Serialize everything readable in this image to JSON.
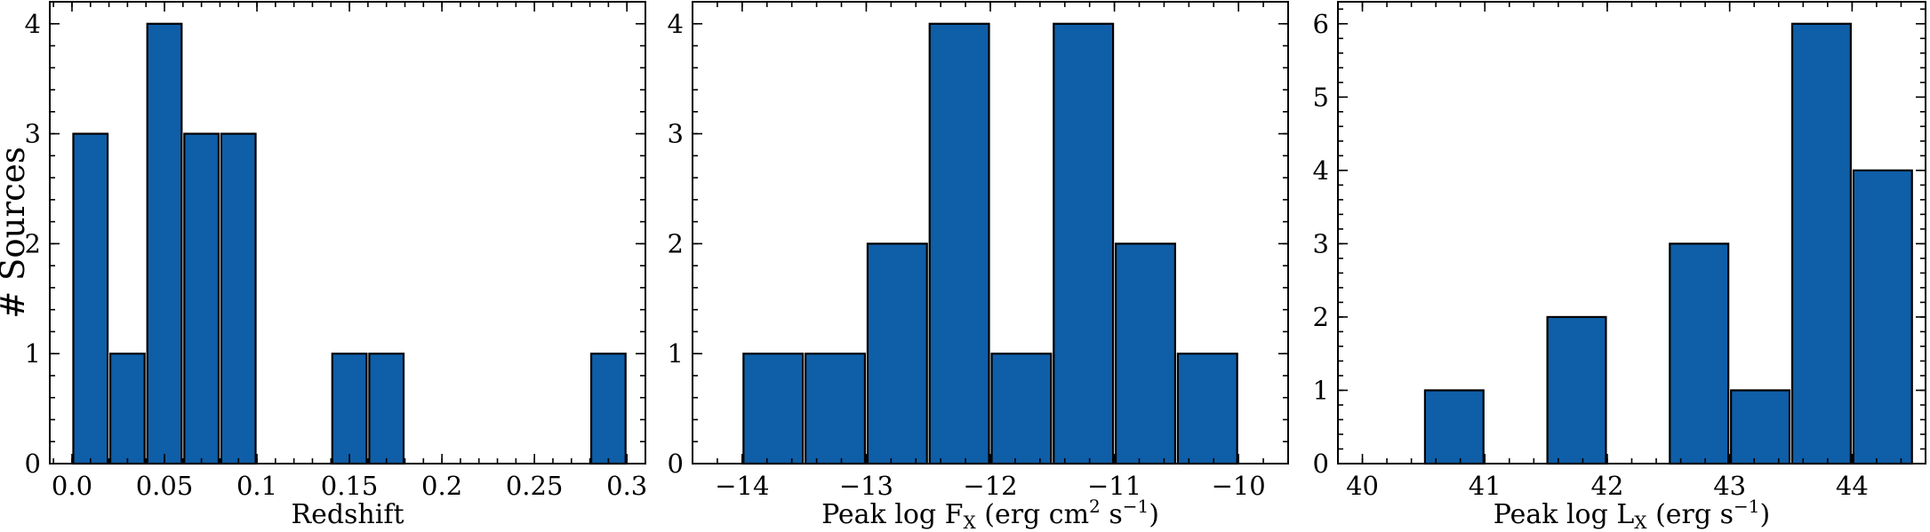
{
  "chart_data": [
    {
      "type": "bar",
      "xlabel": "Redshift",
      "ylabel": "# Sources",
      "xlim": [
        -0.012,
        0.31
      ],
      "ylim": [
        0,
        4.2
      ],
      "grid": false,
      "x_ticks": [
        0.0,
        0.05,
        0.1,
        0.15,
        0.2,
        0.25,
        0.3
      ],
      "x_tick_labels": [
        "0.0",
        "0.05",
        "0.1",
        "0.15",
        "0.2",
        "0.25",
        "0.3"
      ],
      "y_ticks": [
        0,
        1,
        2,
        3,
        4
      ],
      "y_tick_labels": [
        "0",
        "1",
        "2",
        "3",
        "4"
      ],
      "bins": [
        [
          0.0,
          0.02
        ],
        [
          0.02,
          0.04
        ],
        [
          0.04,
          0.06
        ],
        [
          0.06,
          0.08
        ],
        [
          0.08,
          0.1
        ],
        [
          0.1,
          0.12
        ],
        [
          0.12,
          0.14
        ],
        [
          0.14,
          0.16
        ],
        [
          0.16,
          0.18
        ],
        [
          0.18,
          0.2
        ],
        [
          0.2,
          0.22
        ],
        [
          0.22,
          0.24
        ],
        [
          0.24,
          0.26
        ],
        [
          0.26,
          0.28
        ],
        [
          0.28,
          0.3
        ]
      ],
      "values": [
        3,
        1,
        4,
        3,
        3,
        0,
        0,
        1,
        1,
        0,
        0,
        0,
        0,
        0,
        1
      ],
      "bar_color": "#0f5ea8",
      "edge_color": "#000000"
    },
    {
      "type": "bar",
      "xlabel": "Peak log F",
      "xlabel_sub": "X",
      "xlabel_unit": " (erg cm",
      "xlabel_unit_sup1": "2",
      "xlabel_unit_mid": " s",
      "xlabel_unit_sup2": "−1",
      "xlabel_unit_end": ")",
      "ylabel": "",
      "xlim": [
        -14.4,
        -9.6
      ],
      "ylim": [
        0,
        4.2
      ],
      "grid": false,
      "x_ticks": [
        -14,
        -13,
        -12,
        -11,
        -10
      ],
      "x_tick_labels": [
        "−14",
        "−13",
        "−12",
        "−11",
        "−10"
      ],
      "y_ticks": [
        0,
        1,
        2,
        3,
        4
      ],
      "y_tick_labels": [
        "0",
        "1",
        "2",
        "3",
        "4"
      ],
      "bins": [
        [
          -14.0,
          -13.5
        ],
        [
          -13.5,
          -13.0
        ],
        [
          -13.0,
          -12.5
        ],
        [
          -12.5,
          -12.0
        ],
        [
          -12.0,
          -11.5
        ],
        [
          -11.5,
          -11.0
        ],
        [
          -11.0,
          -10.5
        ],
        [
          -10.5,
          -10.0
        ]
      ],
      "values": [
        1,
        1,
        2,
        4,
        1,
        4,
        2,
        1
      ],
      "bar_color": "#0f5ea8",
      "edge_color": "#000000"
    },
    {
      "type": "bar",
      "xlabel": "Peak log L",
      "xlabel_sub": "X",
      "xlabel_unit": " (erg s",
      "xlabel_unit_sup1": "",
      "xlabel_unit_mid": "",
      "xlabel_unit_sup2": "−1",
      "xlabel_unit_end": ")",
      "ylabel": "",
      "xlim": [
        39.8,
        44.6
      ],
      "ylim": [
        0,
        6.3
      ],
      "grid": false,
      "x_ticks": [
        40,
        41,
        42,
        43,
        44
      ],
      "x_tick_labels": [
        "40",
        "41",
        "42",
        "43",
        "44"
      ],
      "y_ticks": [
        0,
        1,
        2,
        3,
        4,
        5,
        6
      ],
      "y_tick_labels": [
        "0",
        "1",
        "2",
        "3",
        "4",
        "5",
        "6"
      ],
      "bins": [
        [
          40.0,
          40.5
        ],
        [
          40.5,
          41.0
        ],
        [
          41.0,
          41.5
        ],
        [
          41.5,
          42.0
        ],
        [
          42.0,
          42.5
        ],
        [
          42.5,
          43.0
        ],
        [
          43.0,
          43.5
        ],
        [
          43.5,
          44.0
        ],
        [
          44.0,
          44.5
        ]
      ],
      "values": [
        0,
        1,
        0,
        2,
        0,
        3,
        1,
        6,
        4
      ],
      "bar_color": "#0f5ea8",
      "edge_color": "#000000"
    }
  ]
}
